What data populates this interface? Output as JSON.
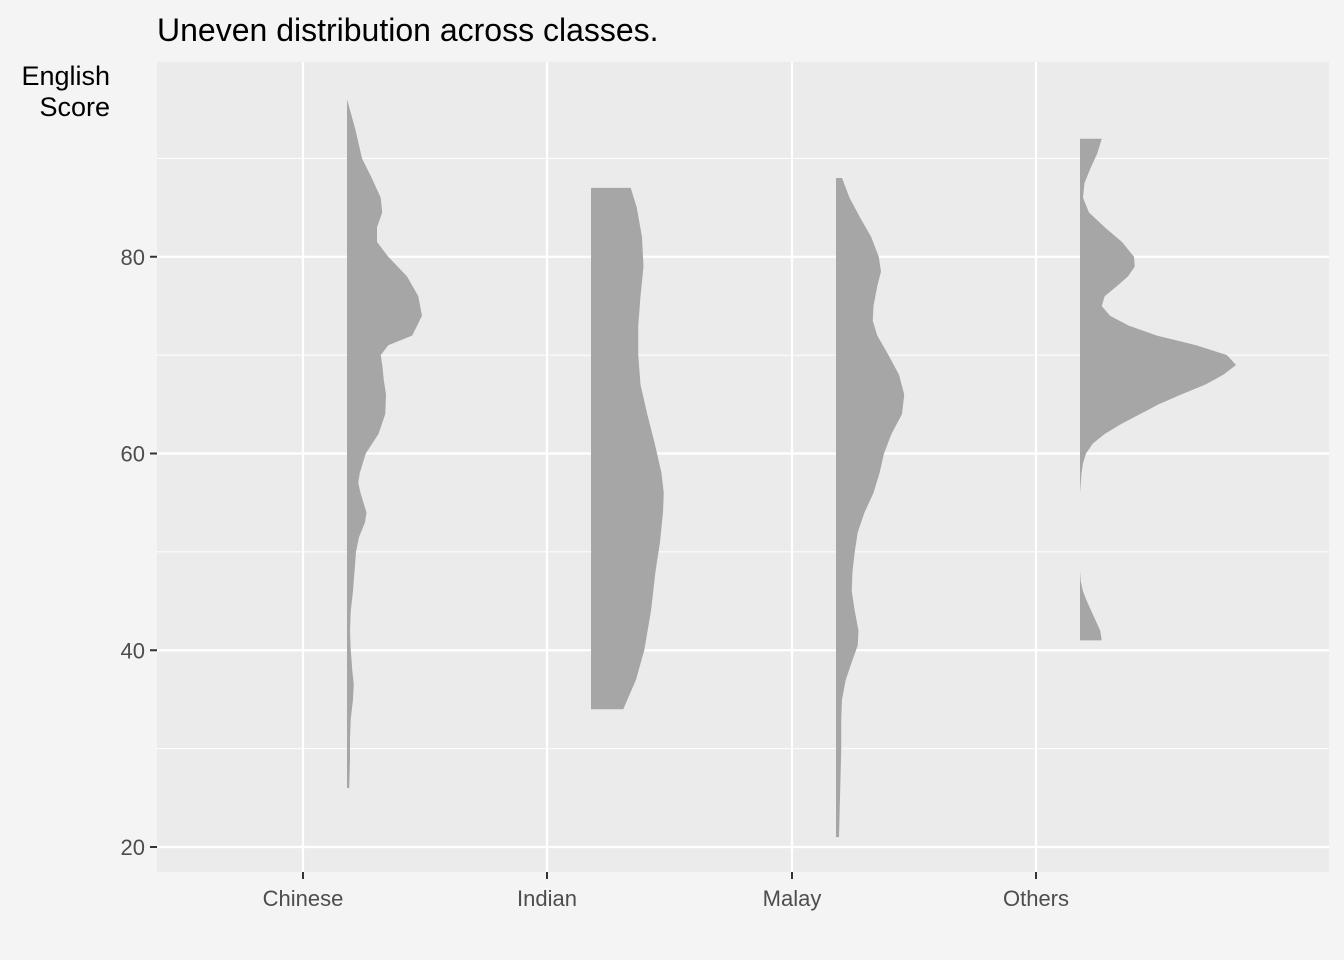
{
  "chart_data": {
    "type": "area",
    "subtype": "half-violin",
    "title": "Uneven distribution across classes.",
    "ylabel_lines": [
      "English",
      "Score"
    ],
    "xlabel": "",
    "categories": [
      "Chinese",
      "Indian",
      "Malay",
      "Others"
    ],
    "ylim": [
      17.5,
      99.5
    ],
    "y_ticks": [
      20,
      40,
      60,
      80
    ],
    "grid": true,
    "fill_color": "#a6a6a6",
    "panel_color": "#ebebeb",
    "background_color": "#f4f4f4",
    "series": [
      {
        "category": "Chinese",
        "y_range": [
          26,
          96
        ],
        "density_profile": [
          [
            96,
            0.0
          ],
          [
            93,
            0.11
          ],
          [
            90,
            0.2
          ],
          [
            88,
            0.33
          ],
          [
            86,
            0.45
          ],
          [
            84.5,
            0.47
          ],
          [
            83,
            0.4
          ],
          [
            81.5,
            0.4
          ],
          [
            80,
            0.55
          ],
          [
            78,
            0.8
          ],
          [
            76,
            0.95
          ],
          [
            74,
            1.0
          ],
          [
            72,
            0.87
          ],
          [
            71,
            0.55
          ],
          [
            70,
            0.45
          ],
          [
            69,
            0.47
          ],
          [
            67.5,
            0.49
          ],
          [
            66,
            0.52
          ],
          [
            64,
            0.51
          ],
          [
            62,
            0.42
          ],
          [
            60,
            0.25
          ],
          [
            58,
            0.17
          ],
          [
            57,
            0.15
          ],
          [
            56,
            0.18
          ],
          [
            54,
            0.26
          ],
          [
            53,
            0.24
          ],
          [
            51.5,
            0.16
          ],
          [
            50,
            0.12
          ],
          [
            48,
            0.1
          ],
          [
            46,
            0.08
          ],
          [
            44,
            0.05
          ],
          [
            42,
            0.04
          ],
          [
            40,
            0.05
          ],
          [
            38,
            0.07
          ],
          [
            36.5,
            0.09
          ],
          [
            35,
            0.08
          ],
          [
            33,
            0.05
          ],
          [
            31,
            0.04
          ],
          [
            29,
            0.04
          ],
          [
            26,
            0.03
          ]
        ]
      },
      {
        "category": "Indian",
        "y_range": [
          34,
          87
        ],
        "density_profile": [
          [
            87,
            0.53
          ],
          [
            85,
            0.61
          ],
          [
            82,
            0.68
          ],
          [
            79,
            0.7
          ],
          [
            76,
            0.66
          ],
          [
            73,
            0.63
          ],
          [
            70,
            0.63
          ],
          [
            67,
            0.66
          ],
          [
            64,
            0.75
          ],
          [
            61,
            0.85
          ],
          [
            58,
            0.94
          ],
          [
            56,
            0.97
          ],
          [
            54,
            0.96
          ],
          [
            51,
            0.92
          ],
          [
            48,
            0.86
          ],
          [
            44,
            0.8
          ],
          [
            40,
            0.71
          ],
          [
            37,
            0.6
          ],
          [
            34,
            0.43
          ]
        ]
      },
      {
        "category": "Malay",
        "y_range": [
          21,
          88
        ],
        "density_profile": [
          [
            88,
            0.08
          ],
          [
            86,
            0.18
          ],
          [
            84,
            0.32
          ],
          [
            82,
            0.47
          ],
          [
            80,
            0.57
          ],
          [
            78.5,
            0.6
          ],
          [
            77,
            0.55
          ],
          [
            75,
            0.5
          ],
          [
            73.5,
            0.49
          ],
          [
            72,
            0.55
          ],
          [
            70,
            0.7
          ],
          [
            68,
            0.84
          ],
          [
            66,
            0.91
          ],
          [
            64,
            0.88
          ],
          [
            62,
            0.74
          ],
          [
            60,
            0.64
          ],
          [
            58,
            0.58
          ],
          [
            56,
            0.5
          ],
          [
            54,
            0.38
          ],
          [
            52,
            0.29
          ],
          [
            50,
            0.25
          ],
          [
            48,
            0.22
          ],
          [
            46,
            0.21
          ],
          [
            44,
            0.25
          ],
          [
            42,
            0.3
          ],
          [
            40.5,
            0.29
          ],
          [
            39,
            0.22
          ],
          [
            37,
            0.13
          ],
          [
            35,
            0.08
          ],
          [
            33,
            0.07
          ],
          [
            30,
            0.07
          ],
          [
            27,
            0.06
          ],
          [
            24,
            0.05
          ],
          [
            21,
            0.04
          ]
        ]
      },
      {
        "category": "Others",
        "y_range": [
          41,
          92
        ],
        "segments": [
          [
            [
              92,
              0.29
            ],
            [
              90.5,
              0.23
            ],
            [
              89,
              0.14
            ],
            [
              87.5,
              0.06
            ],
            [
              86,
              0.04
            ],
            [
              84.5,
              0.12
            ],
            [
              83,
              0.33
            ],
            [
              81.5,
              0.56
            ],
            [
              80,
              0.72
            ],
            [
              79,
              0.73
            ],
            [
              78,
              0.64
            ],
            [
              77,
              0.49
            ],
            [
              76,
              0.33
            ],
            [
              75,
              0.29
            ],
            [
              74,
              0.4
            ],
            [
              73,
              0.65
            ],
            [
              72,
              1.02
            ],
            [
              71,
              1.55
            ],
            [
              70,
              1.96
            ],
            [
              69,
              2.08
            ],
            [
              68,
              1.91
            ],
            [
              67,
              1.67
            ],
            [
              66,
              1.35
            ],
            [
              65,
              1.05
            ],
            [
              64,
              0.8
            ],
            [
              63,
              0.55
            ],
            [
              62,
              0.33
            ],
            [
              61,
              0.17
            ],
            [
              60,
              0.08
            ],
            [
              59,
              0.04
            ],
            [
              58,
              0.02
            ],
            [
              57,
              0.01
            ],
            [
              56,
              0.0
            ],
            [
              55.3,
              0.0
            ]
          ],
          [
            [
              48.6,
              0.0
            ],
            [
              48,
              0.0
            ],
            [
              47,
              0.01
            ],
            [
              46,
              0.04
            ],
            [
              45,
              0.09
            ],
            [
              44,
              0.15
            ],
            [
              43,
              0.21
            ],
            [
              42,
              0.27
            ],
            [
              41,
              0.29
            ]
          ]
        ]
      }
    ]
  }
}
